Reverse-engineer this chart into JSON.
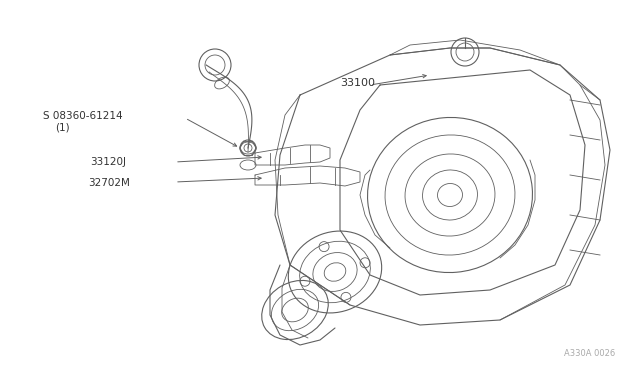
{
  "bg_color": "#ffffff",
  "line_color": "#606060",
  "text_color": "#333333",
  "fig_width": 6.4,
  "fig_height": 3.72,
  "dpi": 100,
  "watermark": "A330A 0026",
  "label_s": "S 08360-61214",
  "label_1": "(1)",
  "label_33120J": "33120J",
  "label_32702M": "32702M",
  "label_33100": "33100"
}
